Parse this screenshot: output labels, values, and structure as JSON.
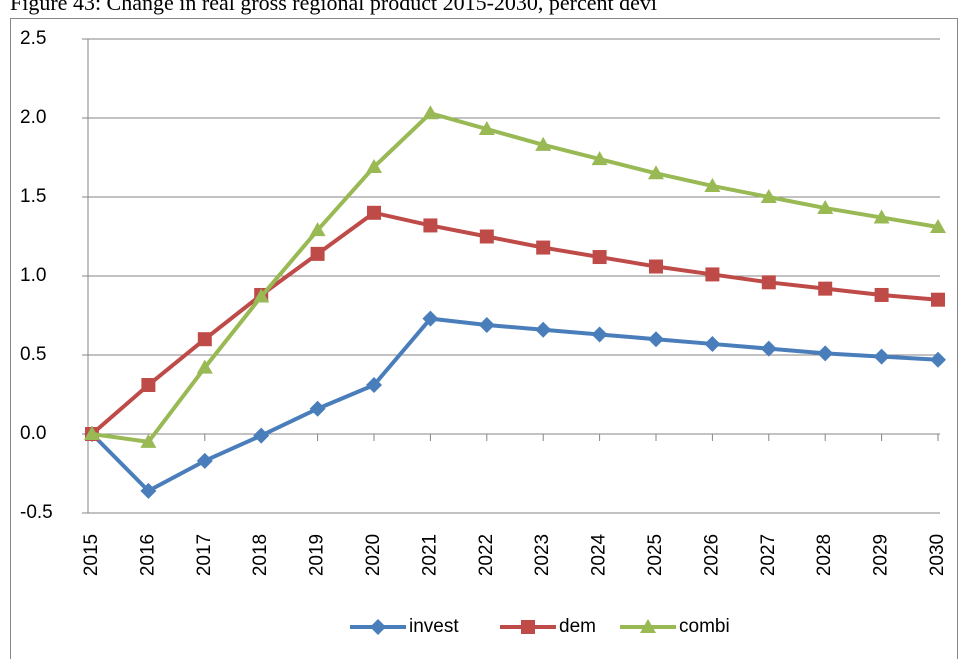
{
  "chart_data": {
    "type": "line",
    "title": "Figure 43: Change in real gross regional product 2015-2030, percent devi",
    "categories": [
      "2015",
      "2016",
      "2017",
      "2018",
      "2019",
      "2020",
      "2021",
      "2022",
      "2023",
      "2024",
      "2025",
      "2026",
      "2027",
      "2028",
      "2029",
      "2030"
    ],
    "series": [
      {
        "name": "invest",
        "color": "#4a7ebb",
        "marker": "diamond",
        "values": [
          0,
          -0.36,
          -0.17,
          -0.01,
          0.16,
          0.31,
          0.73,
          0.69,
          0.66,
          0.63,
          0.6,
          0.57,
          0.54,
          0.51,
          0.49,
          0.47
        ]
      },
      {
        "name": "dem",
        "color": "#be4b48",
        "marker": "square",
        "values": [
          0,
          0.31,
          0.6,
          0.88,
          1.14,
          1.4,
          1.32,
          1.25,
          1.18,
          1.12,
          1.06,
          1.01,
          0.96,
          0.92,
          0.88,
          0.85
        ]
      },
      {
        "name": "combi",
        "color": "#98b954",
        "marker": "triangle",
        "values": [
          0,
          -0.05,
          0.42,
          0.87,
          1.29,
          1.69,
          2.03,
          1.93,
          1.83,
          1.74,
          1.65,
          1.57,
          1.5,
          1.43,
          1.37,
          1.31
        ]
      }
    ],
    "ylim": [
      -0.5,
      2.5
    ],
    "yticks": [
      -0.5,
      0.5,
      {
        "value": 0,
        "label": "0.0"
      },
      {
        "value": 1,
        "label": "1.0"
      },
      1.5,
      {
        "value": 2,
        "label": "2.0"
      },
      2.5
    ],
    "grid": true,
    "legend": "bottom"
  }
}
